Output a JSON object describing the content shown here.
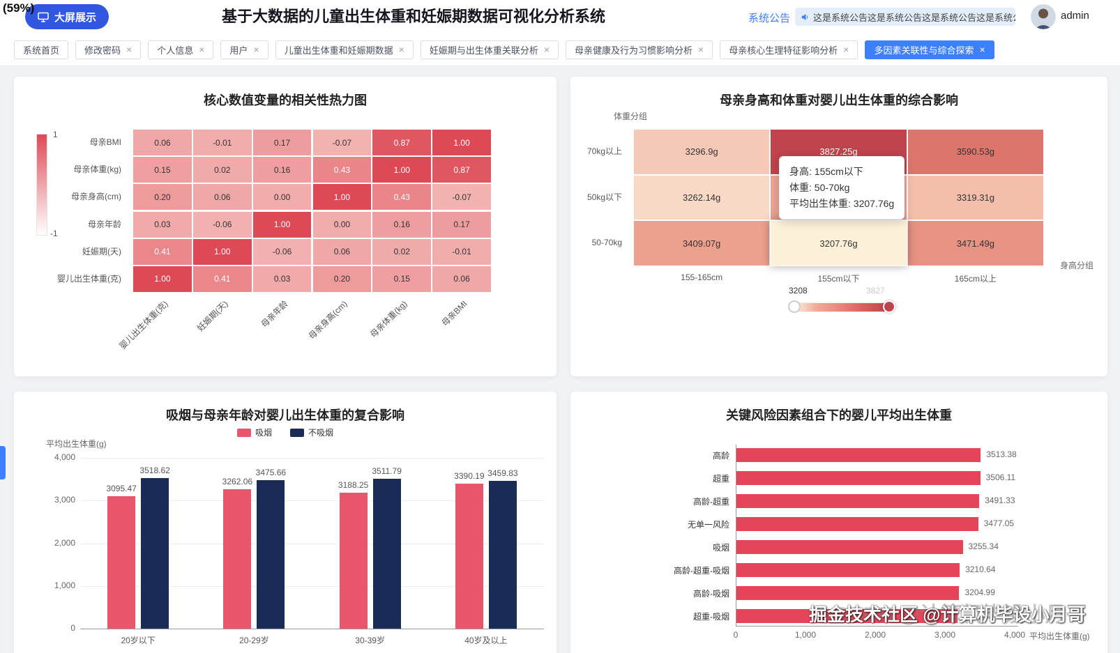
{
  "overlay": {
    "badge": "(59%)"
  },
  "header": {
    "screen_button": "大屏展示",
    "title": "基于大数据的儿童出生体重和妊娠期数据可视化分析系统",
    "announcement_label": "系统公告",
    "announcement_text": "这是系统公告这是系统公告这是系统公告这是系统公告",
    "user_name": "admin"
  },
  "tabs": [
    {
      "label": "系统首页",
      "closable": false,
      "active": false
    },
    {
      "label": "修改密码",
      "closable": true,
      "active": false
    },
    {
      "label": "个人信息",
      "closable": true,
      "active": false
    },
    {
      "label": "用户",
      "closable": true,
      "active": false
    },
    {
      "label": "儿童出生体重和妊娠期数据",
      "closable": true,
      "active": false
    },
    {
      "label": "妊娠期与出生体重关联分析",
      "closable": true,
      "active": false
    },
    {
      "label": "母亲健康及行为习惯影响分析",
      "closable": true,
      "active": false
    },
    {
      "label": "母亲核心生理特征影响分析",
      "closable": true,
      "active": false
    },
    {
      "label": "多因素关联性与综合探索",
      "closable": true,
      "active": true
    }
  ],
  "watermark": {
    "line1": "掘金技术社区 @计算机毕设小月哥",
    "line2": "CSDN @计算机毕设小月哥"
  },
  "chart_data": [
    {
      "type": "heatmap",
      "title": "核心数值变量的相关性热力图",
      "rows": [
        "母亲BMI",
        "母亲体重(kg)",
        "母亲身高(cm)",
        "母亲年龄",
        "妊娠期(天)",
        "婴儿出生体重(克)"
      ],
      "cols": [
        "婴儿出生体重(克)",
        "妊娠期(天)",
        "母亲年龄",
        "母亲身高(cm)",
        "母亲体重(kg)",
        "母亲BMI"
      ],
      "values": [
        [
          0.06,
          -0.01,
          0.17,
          -0.07,
          0.87,
          1.0
        ],
        [
          0.15,
          0.02,
          0.16,
          0.43,
          1.0,
          0.87
        ],
        [
          0.2,
          0.06,
          0.0,
          1.0,
          0.43,
          -0.07
        ],
        [
          0.03,
          -0.06,
          1.0,
          0.0,
          0.16,
          0.17
        ],
        [
          0.41,
          1.0,
          -0.06,
          0.06,
          0.02,
          -0.01
        ],
        [
          1.0,
          0.41,
          0.03,
          0.2,
          0.15,
          0.06
        ]
      ],
      "value_range": {
        "min": -1,
        "max": 1
      },
      "colorbar_labels": {
        "top": "1",
        "bottom": "-1"
      },
      "color_stops": [
        "#ffffff",
        "#f6c9c4",
        "#ec8f92",
        "#dd4a56"
      ]
    },
    {
      "type": "heatmap",
      "title": "母亲身高和体重对婴儿出生体重的综合影响",
      "y_axis_title": "体重分组",
      "x_axis_title": "身高分组",
      "rows": [
        "70kg以上",
        "50kg以下",
        "50-70kg"
      ],
      "cols": [
        "155-165cm",
        "155cm以下",
        "165cm以上"
      ],
      "values": [
        [
          3296.9,
          3827.25,
          3590.53
        ],
        [
          3262.14,
          null,
          3319.31
        ],
        [
          3409.07,
          3207.76,
          3471.49
        ]
      ],
      "cell_labels": [
        [
          "3296.9g",
          "3827.25g",
          "3590.53g"
        ],
        [
          "3262.14g",
          "",
          "3319.31g"
        ],
        [
          "3409.07g",
          "3207.76g",
          "3471.49g"
        ]
      ],
      "value_range": {
        "min": 3208,
        "max": 3827
      },
      "color_stops": [
        "#fdf2e0",
        "#efab97",
        "#e4887b",
        "#d4625c",
        "#bf444c"
      ],
      "fallback_color": "#eba493",
      "highlight_cell": {
        "row": 2,
        "col": 1
      },
      "highlight_color": "#fdf0d8",
      "tooltip": {
        "lines": [
          "身高: 155cm以下",
          "体重: 50-70kg",
          "平均出生体重: 3207.76g"
        ]
      },
      "visual_map": {
        "left_label": "3208",
        "right_label": "3827"
      }
    },
    {
      "type": "bar",
      "title": "吸烟与母亲年龄对婴儿出生体重的复合影响",
      "ylabel": "平均出生体重(g)",
      "categories": [
        "20岁以下",
        "20-29岁",
        "30-39岁",
        "40岁及以上"
      ],
      "series": [
        {
          "name": "吸烟",
          "color": "#e8566b",
          "values": [
            3095.47,
            3262.06,
            3188.25,
            3390.19
          ]
        },
        {
          "name": "不吸烟",
          "color": "#1b2b57",
          "values": [
            3518.62,
            3475.66,
            3511.79,
            3459.83
          ]
        }
      ],
      "ylim": [
        0,
        4000
      ],
      "ytick_labels": [
        "0",
        "1,000",
        "2,000",
        "3,000",
        "4,000"
      ]
    },
    {
      "type": "horizontal-bar",
      "title": "关键风险因素组合下的婴儿平均出生体重",
      "xlabel": "平均出生体重(g)",
      "categories": [
        "高龄",
        "超重",
        "高龄-超重",
        "无单一风险",
        "吸烟",
        "高龄-超重-吸烟",
        "高龄-吸烟",
        "超重-吸烟"
      ],
      "values": [
        3513.38,
        3506.11,
        3491.33,
        3477.05,
        3255.34,
        3210.64,
        3204.99,
        3180
      ],
      "value_labels": [
        "3513.38",
        "3506.11",
        "3491.33",
        "3477.05",
        "3255.34",
        "3210.64",
        "3204.99",
        ""
      ],
      "bar_color": "#e64459",
      "xlim": [
        0,
        4000
      ],
      "xtick_labels": [
        "0",
        "1,000",
        "2,000",
        "3,000",
        "4,000"
      ]
    }
  ]
}
